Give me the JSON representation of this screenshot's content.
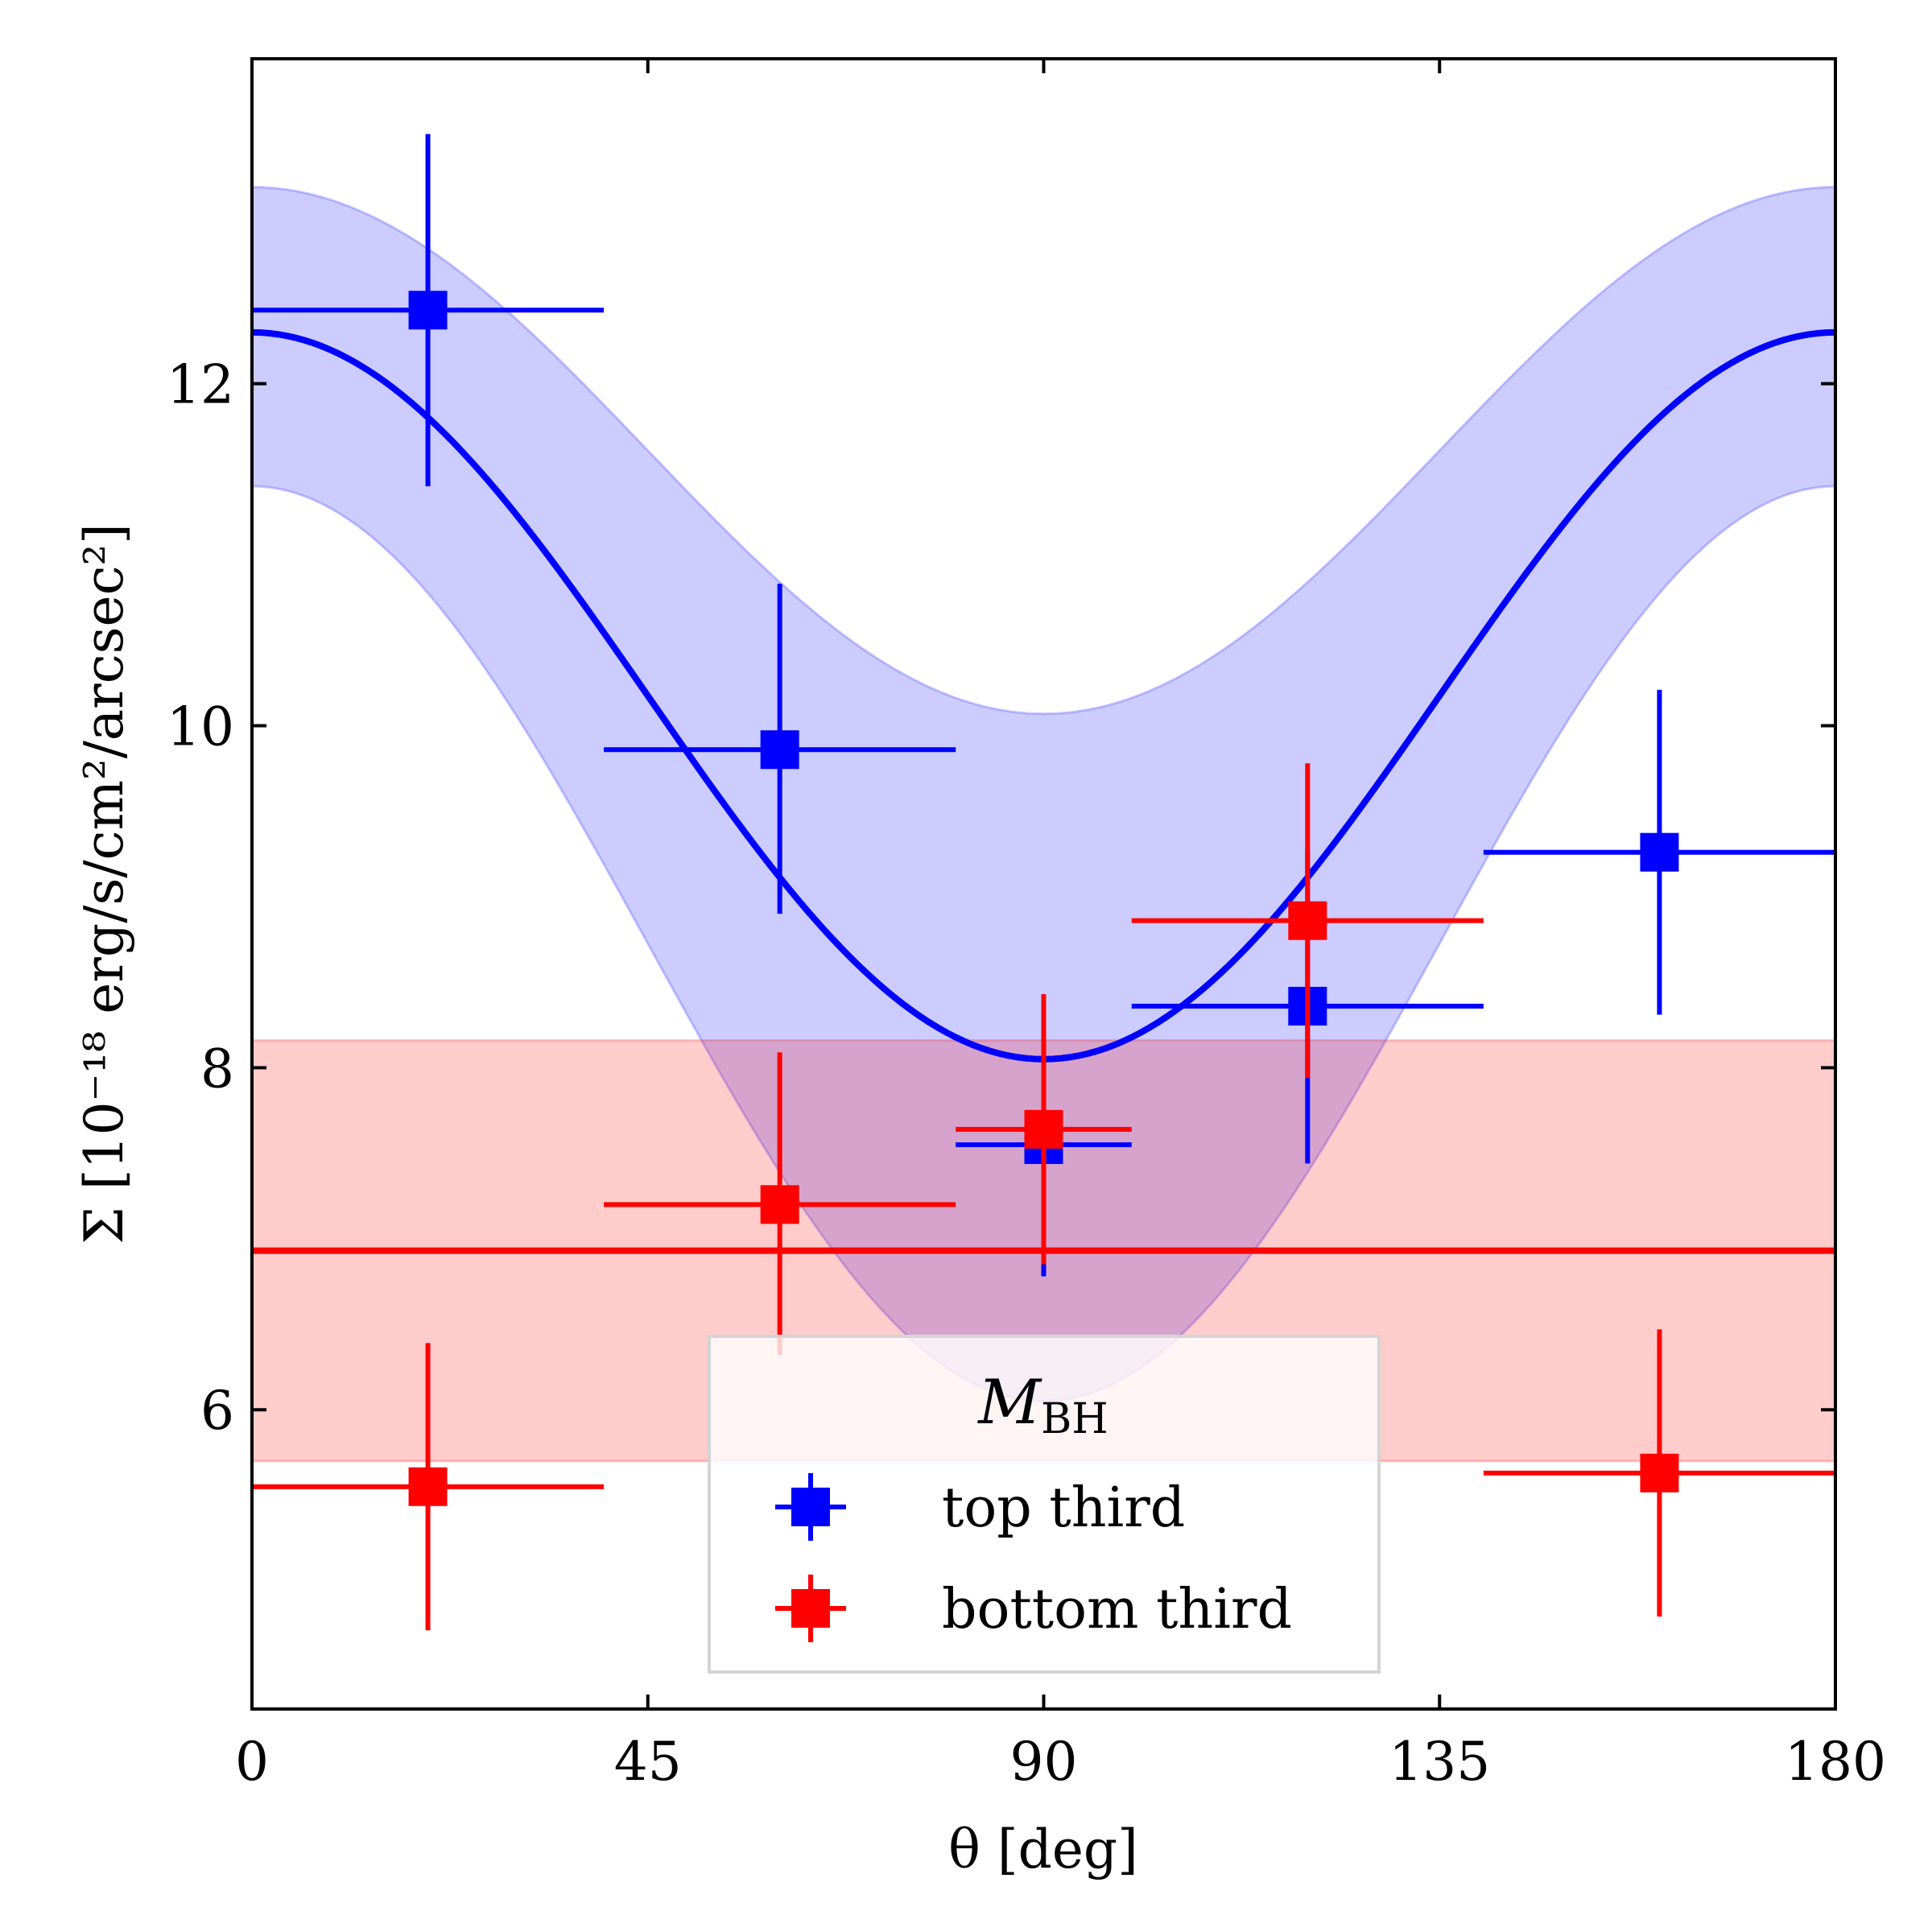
{
  "chart_data": {
    "type": "scatter",
    "xlabel": "θ [deg]",
    "ylabel": "Σ [10⁻¹⁸ erg/s/cm²/arcsec²]",
    "xlim": [
      0,
      180
    ],
    "ylim": [
      4.25,
      13.9
    ],
    "xticks": [
      0,
      45,
      90,
      135,
      180
    ],
    "yticks": [
      6,
      8,
      10,
      12
    ],
    "grid": false,
    "legend": {
      "title": "M",
      "title_sub": "BH",
      "placement": "lower-center",
      "entries": [
        "top third",
        "bottom third"
      ]
    },
    "series": [
      {
        "name": "top third",
        "color": "#0000ff",
        "points": [
          {
            "x": 20,
            "y": 12.43,
            "xerr": 20,
            "yerr_low": 1.03,
            "yerr_high": 1.03
          },
          {
            "x": 60,
            "y": 9.86,
            "xerr": 20,
            "yerr_low": 0.96,
            "yerr_high": 0.97
          },
          {
            "x": 90,
            "y": 7.55,
            "xerr": 10,
            "yerr_low": 0.77,
            "yerr_high": 0.77
          },
          {
            "x": 120,
            "y": 8.36,
            "xerr": 20,
            "yerr_low": 0.92,
            "yerr_high": 0.92
          },
          {
            "x": 160,
            "y": 9.26,
            "xerr": 20,
            "yerr_low": 0.95,
            "yerr_high": 0.95
          }
        ],
        "model": {
          "form": "cos2",
          "amplitude": 4.25,
          "offset": 8.05,
          "band_low_at_0": 11.4,
          "band_high_at_0": 13.15,
          "band_low_at_90": 6.05,
          "band_high_at_90": 10.07
        }
      },
      {
        "name": "bottom third",
        "color": "#ff0000",
        "points": [
          {
            "x": 20,
            "y": 5.55,
            "xerr": 20,
            "yerr_low": 0.84,
            "yerr_high": 0.84
          },
          {
            "x": 60,
            "y": 7.2,
            "xerr": 20,
            "yerr_low": 0.88,
            "yerr_high": 0.89
          },
          {
            "x": 90,
            "y": 7.64,
            "xerr": 10,
            "yerr_low": 0.79,
            "yerr_high": 0.79
          },
          {
            "x": 120,
            "y": 8.86,
            "xerr": 20,
            "yerr_low": 0.92,
            "yerr_high": 0.92
          },
          {
            "x": 160,
            "y": 5.63,
            "xerr": 20,
            "yerr_low": 0.84,
            "yerr_high": 0.84
          }
        ],
        "model": {
          "form": "constant",
          "value": 6.93,
          "band_low": 5.7,
          "band_high": 8.16
        }
      }
    ]
  }
}
